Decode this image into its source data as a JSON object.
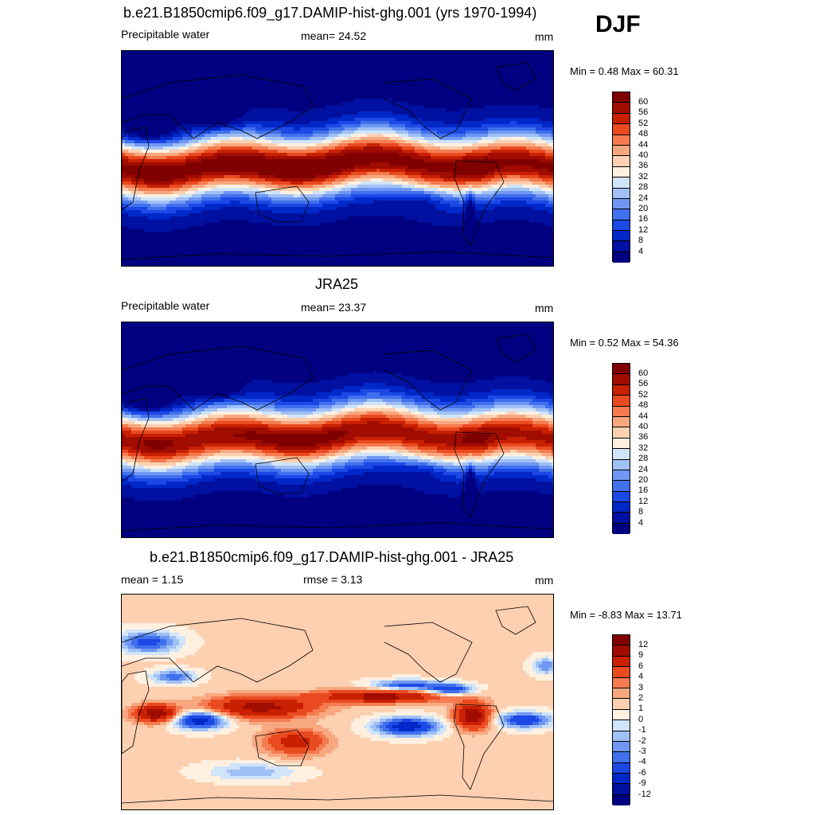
{
  "season": "DJF",
  "units": "mm",
  "panels": [
    {
      "id": "model",
      "title": "b.e21.B1850cmip6.f09_g17.DAMIP-hist-ghg.001 (yrs 1970-1994)",
      "variable": "Precipitable water",
      "stat_left": "",
      "stat_center": "mean=  24.52",
      "units": "mm",
      "minmax": "Min =   0.48 Max =  60.31"
    },
    {
      "id": "obs",
      "title": "JRA25",
      "variable": "Precipitable water",
      "stat_left": "",
      "stat_center": "mean=  23.37",
      "units": "mm",
      "minmax": "Min =   0.52 Max =  54.36"
    },
    {
      "id": "diff",
      "title": "b.e21.B1850cmip6.f09_g17.DAMIP-hist-ghg.001 - JRA25",
      "variable": "",
      "stat_left": "mean =   1.15",
      "stat_center": "rmse =   3.13",
      "units": "mm",
      "minmax": "Min =  -8.83 Max =  13.71"
    }
  ],
  "chart_data": [
    {
      "type": "heatmap",
      "title": "b.e21.B1850cmip6.f09_g17.DAMIP-hist-ghg.001 (yrs 1970-1994)",
      "variable": "Precipitable water",
      "units": "mm",
      "mean": 24.52,
      "min": 0.48,
      "max": 60.31,
      "colorbar_levels": [
        4,
        8,
        12,
        16,
        20,
        24,
        28,
        32,
        36,
        40,
        44,
        48,
        52,
        56,
        60
      ],
      "colors": [
        "#000080",
        "#0010a0",
        "#0028c8",
        "#1c48e6",
        "#4070ec",
        "#7098f2",
        "#a0c0f6",
        "#d0e4fa",
        "#fff0e0",
        "#fcd0b0",
        "#f8a880",
        "#f47c50",
        "#ea4a20",
        "#c82000",
        "#a00c00",
        "#800000"
      ]
    },
    {
      "type": "heatmap",
      "title": "JRA25",
      "variable": "Precipitable water",
      "units": "mm",
      "mean": 23.37,
      "min": 0.52,
      "max": 54.36,
      "colorbar_levels": [
        4,
        8,
        12,
        16,
        20,
        24,
        28,
        32,
        36,
        40,
        44,
        48,
        52,
        56,
        60
      ],
      "colors": [
        "#000080",
        "#0010a0",
        "#0028c8",
        "#1c48e6",
        "#4070ec",
        "#7098f2",
        "#a0c0f6",
        "#d0e4fa",
        "#fff0e0",
        "#fcd0b0",
        "#f8a880",
        "#f47c50",
        "#ea4a20",
        "#c82000",
        "#a00c00",
        "#800000"
      ]
    },
    {
      "type": "heatmap",
      "title": "b.e21.B1850cmip6.f09_g17.DAMIP-hist-ghg.001 - JRA25",
      "units": "mm",
      "mean": 1.15,
      "rmse": 3.13,
      "min": -8.83,
      "max": 13.71,
      "colorbar_levels": [
        -12,
        -9,
        -6,
        -4,
        -3,
        -2,
        -1,
        0,
        1,
        2,
        3,
        4,
        6,
        9,
        12
      ],
      "colors": [
        "#000080",
        "#0010a0",
        "#0028c8",
        "#1c48e6",
        "#4070ec",
        "#7098f2",
        "#a0c0f6",
        "#d0e4fa",
        "#fff0e0",
        "#fcd0b0",
        "#f8a880",
        "#f47c50",
        "#ea4a20",
        "#c82000",
        "#a00c00",
        "#800000"
      ]
    }
  ]
}
